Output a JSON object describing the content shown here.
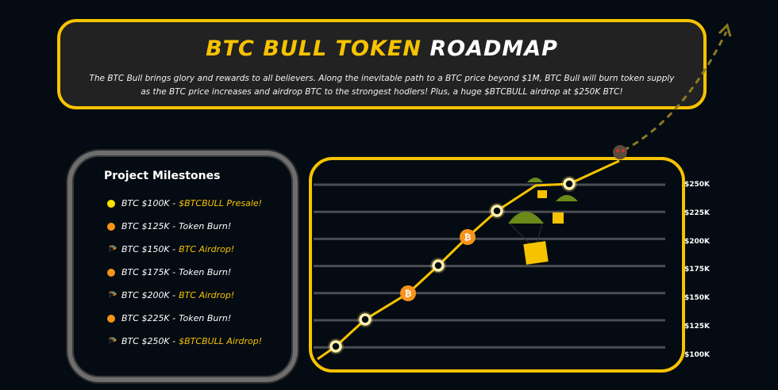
{
  "header": {
    "title_yellow": "BTC BULL TOKEN",
    "title_white": "ROADMAP",
    "description": "The BTC Bull brings glory and rewards to all believers. Along the inevitable path to a BTC price beyond $1M, BTC Bull will burn token supply as the BTC price increases and airdrop BTC to the strongest hodlers! Plus, a huge $BTCBULL airdrop at $250K BTC!"
  },
  "milestones": {
    "title": "Project Milestones",
    "items": [
      {
        "icon": "yellow-dot",
        "price": "BTC $100K - ",
        "event": "$BTCBULL Presale!",
        "highlight": true
      },
      {
        "icon": "orange-dot",
        "price": "BTC $125K - ",
        "event": "Token Burn!",
        "highlight": false
      },
      {
        "icon": "parachute",
        "price": "BTC $150K - ",
        "event": "BTC Airdrop!",
        "highlight": true
      },
      {
        "icon": "orange-dot",
        "price": "BTC $175K - ",
        "event": "Token Burn!",
        "highlight": false
      },
      {
        "icon": "parachute",
        "price": "BTC $200K - ",
        "event": "BTC Airdrop!",
        "highlight": true
      },
      {
        "icon": "orange-dot",
        "price": "BTC $225K - ",
        "event": "Token Burn!",
        "highlight": false
      },
      {
        "icon": "parachute",
        "price": "BTC $250K - ",
        "event": "$BTCBULL Airdrop!",
        "highlight": true
      }
    ]
  },
  "chart": {
    "y_labels": [
      "$250K",
      "$225K",
      "$200K",
      "$175K",
      "$150K",
      "$125K",
      "$100K"
    ]
  },
  "colors": {
    "accent": "#f7c300",
    "orange": "#f7931a",
    "background": "#040b12"
  }
}
